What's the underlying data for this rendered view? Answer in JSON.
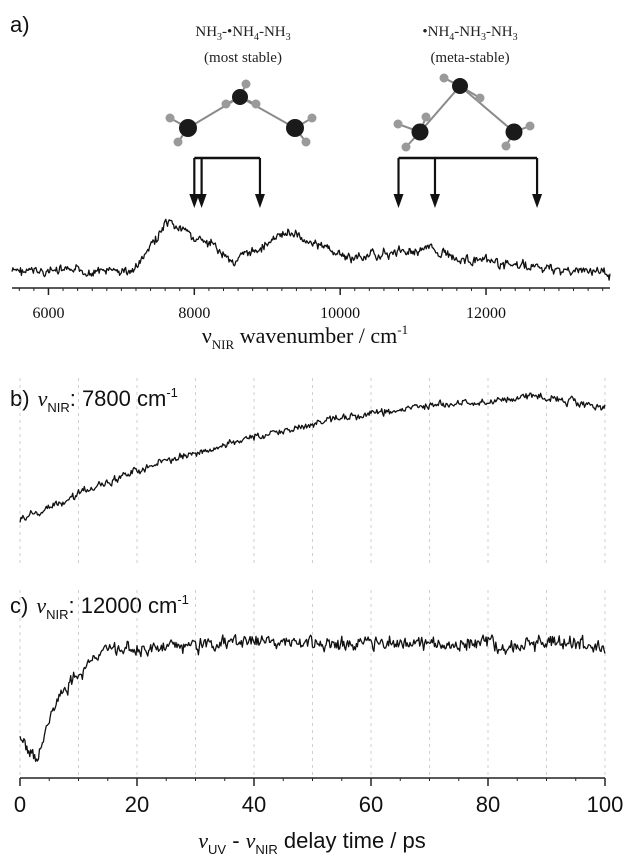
{
  "colors": {
    "trace": "#111111",
    "axis": "#222222",
    "grid": "#cfcfcf",
    "atom_dark": "#1a1a1a",
    "atom_light": "#9a9a9a",
    "bond": "#8a8a8a"
  },
  "panels": {
    "a": {
      "label": "a)",
      "structures": [
        {
          "formula_parts": [
            "NH",
            "3",
            "-•NH",
            "4",
            "-NH",
            "3"
          ],
          "stability": "(most stable)",
          "arrows_wavenumber": [
            8000,
            8100,
            8900
          ]
        },
        {
          "formula_parts": [
            "•NH",
            "4",
            "-NH",
            "3",
            "-NH",
            "3"
          ],
          "stability": "(meta-stable)",
          "arrows_wavenumber": [
            10800,
            11300,
            12700
          ]
        }
      ]
    },
    "b": {
      "label": "b)",
      "nu": "ν",
      "sub": "NIR",
      "text": ": 7800 cm",
      "sup": "-1"
    },
    "c": {
      "label": "c)",
      "nu": "ν",
      "sub": "NIR",
      "text": ": 12000 cm",
      "sup": "-1"
    }
  },
  "chart_data": [
    {
      "type": "line",
      "panel": "a",
      "xlabel_parts": [
        "ν",
        "NIR",
        " wavenumber / cm",
        "-1"
      ],
      "xlim": [
        5500,
        13700
      ],
      "xticks": [
        6000,
        8000,
        10000,
        12000
      ],
      "x_minor_step": 200,
      "grid": false,
      "yticks": [],
      "series": [
        {
          "points": [
            [
              5500,
              0.1
            ],
            [
              6500,
              0.1
            ],
            [
              7150,
              0.1
            ],
            [
              7300,
              0.3
            ],
            [
              7600,
              0.8
            ],
            [
              7800,
              0.75
            ],
            [
              8100,
              0.55
            ],
            [
              8300,
              0.45
            ],
            [
              8550,
              0.25
            ],
            [
              8800,
              0.4
            ],
            [
              9300,
              0.7
            ],
            [
              9700,
              0.5
            ],
            [
              10100,
              0.3
            ],
            [
              10700,
              0.38
            ],
            [
              11200,
              0.45
            ],
            [
              11700,
              0.28
            ],
            [
              12300,
              0.2
            ],
            [
              13000,
              0.12
            ],
            [
              13700,
              0.08
            ]
          ]
        }
      ]
    },
    {
      "type": "line",
      "panel": "b",
      "xlim": [
        0,
        100
      ],
      "xticks": [
        0,
        20,
        40,
        60,
        80,
        100
      ],
      "grid": true,
      "grid_step": 10,
      "series": [
        {
          "points": [
            [
              0,
              0.0
            ],
            [
              5,
              0.1
            ],
            [
              10,
              0.2
            ],
            [
              20,
              0.38
            ],
            [
              30,
              0.52
            ],
            [
              40,
              0.64
            ],
            [
              50,
              0.74
            ],
            [
              60,
              0.82
            ],
            [
              70,
              0.88
            ],
            [
              80,
              0.91
            ],
            [
              88,
              0.96
            ],
            [
              95,
              0.9
            ],
            [
              100,
              0.88
            ]
          ]
        }
      ]
    },
    {
      "type": "line",
      "panel": "c",
      "xlabel_parts": [
        "ν",
        "UV",
        " - ",
        "ν",
        "NIR",
        " delay time / ps"
      ],
      "xlim": [
        0,
        100
      ],
      "xticks": [
        0,
        20,
        40,
        60,
        80,
        100
      ],
      "x_minor_step": 5,
      "grid": true,
      "grid_step": 10,
      "series": [
        {
          "points": [
            [
              0,
              0.2
            ],
            [
              2,
              0.1
            ],
            [
              3,
              0.02
            ],
            [
              5,
              0.35
            ],
            [
              8,
              0.55
            ],
            [
              12,
              0.72
            ],
            [
              16,
              0.8
            ],
            [
              20,
              0.82
            ],
            [
              30,
              0.84
            ],
            [
              40,
              0.86
            ],
            [
              50,
              0.85
            ],
            [
              60,
              0.86
            ],
            [
              70,
              0.85
            ],
            [
              80,
              0.86
            ],
            [
              83,
              0.8
            ],
            [
              90,
              0.86
            ],
            [
              100,
              0.82
            ]
          ]
        }
      ]
    }
  ]
}
